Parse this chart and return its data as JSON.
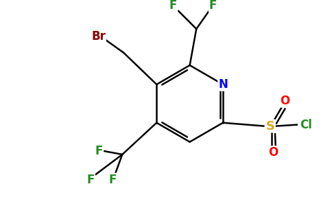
{
  "bg_color": "#ffffff",
  "atom_colors": {
    "C": "#000000",
    "N": "#0000ff",
    "F": "#228B22",
    "Br": "#8B0000",
    "S": "#DAA520",
    "O": "#ff0000",
    "Cl": "#228B22"
  },
  "figsize": [
    4.84,
    3.0
  ],
  "dpi": 100
}
